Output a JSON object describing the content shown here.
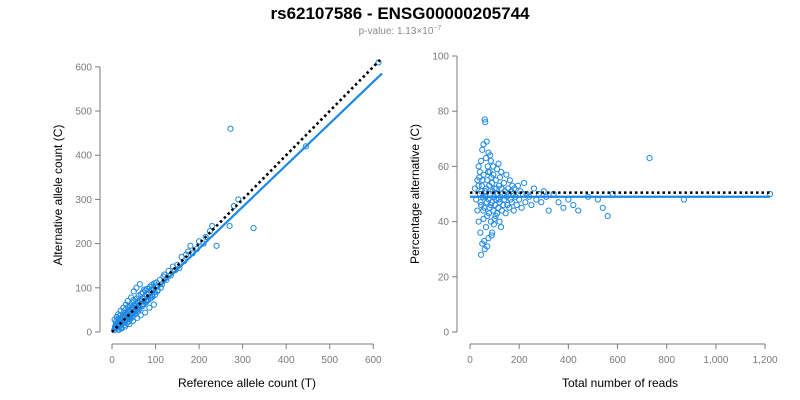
{
  "title": "rs62107586 - ENSG00000205744",
  "subtitle": {
    "prefix": "p-value: 1.13×10",
    "exponent": "−7"
  },
  "colors": {
    "series": "#1e88e5",
    "reference_line": "#000000",
    "axis": "#7a7a7a",
    "subtitle": "#8a8a8a"
  },
  "chart_data": [
    {
      "type": "scatter",
      "title": "",
      "xlabel": "Reference allele count (T)",
      "ylabel": "Alternative allele count (C)",
      "xlim": [
        0,
        620
      ],
      "ylim": [
        0,
        620
      ],
      "xticks": [
        0,
        100,
        200,
        300,
        400,
        500,
        600
      ],
      "yticks": [
        0,
        100,
        200,
        300,
        400,
        500,
        600
      ],
      "xtick_labels": [
        "0",
        "100",
        "200",
        "300",
        "400",
        "500",
        "600"
      ],
      "ytick_labels": [
        "0",
        "100",
        "200",
        "300",
        "400",
        "500",
        "600"
      ],
      "grid": false,
      "points": [
        [
          8,
          10
        ],
        [
          12,
          15
        ],
        [
          15,
          12
        ],
        [
          18,
          22
        ],
        [
          10,
          25
        ],
        [
          22,
          18
        ],
        [
          25,
          30
        ],
        [
          28,
          24
        ],
        [
          30,
          35
        ],
        [
          33,
          28
        ],
        [
          35,
          40
        ],
        [
          38,
          33
        ],
        [
          40,
          45
        ],
        [
          42,
          36
        ],
        [
          45,
          50
        ],
        [
          48,
          42
        ],
        [
          50,
          55
        ],
        [
          52,
          46
        ],
        [
          55,
          60
        ],
        [
          58,
          50
        ],
        [
          60,
          65
        ],
        [
          62,
          55
        ],
        [
          65,
          70
        ],
        [
          68,
          60
        ],
        [
          70,
          75
        ],
        [
          72,
          64
        ],
        [
          75,
          80
        ],
        [
          78,
          70
        ],
        [
          80,
          85
        ],
        [
          82,
          74
        ],
        [
          85,
          88
        ],
        [
          88,
          80
        ],
        [
          90,
          95
        ],
        [
          92,
          84
        ],
        [
          95,
          100
        ],
        [
          98,
          90
        ],
        [
          100,
          105
        ],
        [
          105,
          95
        ],
        [
          110,
          118
        ],
        [
          115,
          108
        ],
        [
          120,
          130
        ],
        [
          125,
          118
        ],
        [
          130,
          138
        ],
        [
          135,
          128
        ],
        [
          140,
          148
        ],
        [
          150,
          152
        ],
        [
          155,
          145
        ],
        [
          160,
          170
        ],
        [
          165,
          160
        ],
        [
          170,
          175
        ],
        [
          14,
          40
        ],
        [
          20,
          48
        ],
        [
          26,
          55
        ],
        [
          32,
          62
        ],
        [
          36,
          70
        ],
        [
          44,
          78
        ],
        [
          50,
          92
        ],
        [
          56,
          100
        ],
        [
          64,
          108
        ],
        [
          74,
          96
        ],
        [
          16,
          5
        ],
        [
          22,
          8
        ],
        [
          30,
          12
        ],
        [
          40,
          18
        ],
        [
          48,
          25
        ],
        [
          58,
          32
        ],
        [
          66,
          38
        ],
        [
          76,
          44
        ],
        [
          86,
          55
        ],
        [
          96,
          62
        ],
        [
          6,
          28
        ],
        [
          9,
          18
        ],
        [
          11,
          34
        ],
        [
          13,
          6
        ],
        [
          17,
          30
        ],
        [
          19,
          38
        ],
        [
          21,
          10
        ],
        [
          23,
          26
        ],
        [
          27,
          44
        ],
        [
          29,
          16
        ],
        [
          31,
          50
        ],
        [
          34,
          20
        ],
        [
          37,
          56
        ],
        [
          39,
          24
        ],
        [
          41,
          60
        ],
        [
          43,
          30
        ],
        [
          46,
          66
        ],
        [
          47,
          34
        ],
        [
          49,
          72
        ],
        [
          53,
          40
        ],
        [
          57,
          76
        ],
        [
          59,
          46
        ],
        [
          61,
          82
        ],
        [
          63,
          52
        ],
        [
          67,
          86
        ],
        [
          69,
          58
        ],
        [
          71,
          90
        ],
        [
          73,
          62
        ],
        [
          77,
          94
        ],
        [
          79,
          68
        ],
        [
          81,
          98
        ],
        [
          83,
          72
        ],
        [
          87,
          102
        ],
        [
          89,
          76
        ],
        [
          91,
          106
        ],
        [
          93,
          80
        ],
        [
          97,
          110
        ],
        [
          99,
          84
        ],
        [
          102,
          112
        ],
        [
          104,
          92
        ],
        [
          5,
          4
        ],
        [
          7,
          12
        ],
        [
          9,
          8
        ],
        [
          11,
          20
        ],
        [
          13,
          16
        ],
        [
          15,
          24
        ],
        [
          17,
          14
        ],
        [
          19,
          28
        ],
        [
          21,
          22
        ],
        [
          23,
          32
        ],
        [
          25,
          20
        ],
        [
          27,
          36
        ],
        [
          29,
          26
        ],
        [
          31,
          40
        ],
        [
          33,
          30
        ],
        [
          35,
          44
        ],
        [
          37,
          34
        ],
        [
          39,
          48
        ],
        [
          41,
          38
        ],
        [
          43,
          52
        ],
        [
          45,
          42
        ],
        [
          47,
          56
        ],
        [
          49,
          46
        ],
        [
          51,
          60
        ],
        [
          53,
          50
        ],
        [
          55,
          64
        ],
        [
          57,
          54
        ],
        [
          59,
          68
        ],
        [
          61,
          58
        ],
        [
          63,
          72
        ],
        [
          180,
          195
        ],
        [
          185,
          178
        ],
        [
          200,
          205
        ],
        [
          215,
          215
        ],
        [
          230,
          240
        ],
        [
          240,
          195
        ],
        [
          270,
          240
        ],
        [
          280,
          285
        ],
        [
          290,
          300
        ],
        [
          325,
          235
        ],
        [
          272,
          460
        ],
        [
          445,
          420
        ],
        [
          612,
          610
        ],
        [
          175,
          182
        ],
        [
          195,
          188
        ],
        [
          210,
          200
        ],
        [
          225,
          228
        ],
        [
          145,
          140
        ],
        [
          112,
          100
        ],
        [
          118,
          125
        ]
      ],
      "fit_line": {
        "from": [
          0,
          0
        ],
        "to": [
          620,
          585
        ]
      },
      "reference_line": {
        "from": [
          0,
          0
        ],
        "to": [
          620,
          620
        ]
      }
    },
    {
      "type": "scatter",
      "title": "",
      "xlabel": "Total number of reads",
      "ylabel": "Percentage alternative (C)",
      "xlim": [
        0,
        1220
      ],
      "ylim": [
        0,
        100
      ],
      "xticks": [
        0,
        200,
        400,
        600,
        800,
        1000,
        1200
      ],
      "yticks": [
        0,
        20,
        40,
        60,
        80,
        100
      ],
      "xtick_labels": [
        "0",
        "200",
        "400",
        "600",
        "800",
        "1,000",
        "1,200"
      ],
      "ytick_labels": [
        "0",
        "20",
        "40",
        "60",
        "80",
        "100"
      ],
      "grid": false,
      "points": [
        [
          20,
          52
        ],
        [
          25,
          48
        ],
        [
          30,
          55
        ],
        [
          30,
          44
        ],
        [
          35,
          60
        ],
        [
          35,
          40
        ],
        [
          40,
          50
        ],
        [
          40,
          58
        ],
        [
          42,
          36
        ],
        [
          45,
          62
        ],
        [
          45,
          46
        ],
        [
          48,
          53
        ],
        [
          50,
          32
        ],
        [
          50,
          66
        ],
        [
          52,
          49
        ],
        [
          55,
          41
        ],
        [
          55,
          57
        ],
        [
          58,
          45
        ],
        [
          60,
          77
        ],
        [
          60,
          30
        ],
        [
          62,
          51
        ],
        [
          65,
          63
        ],
        [
          65,
          38
        ],
        [
          68,
          47
        ],
        [
          70,
          55
        ],
        [
          70,
          42
        ],
        [
          72,
          60
        ],
        [
          75,
          48
        ],
        [
          75,
          34
        ],
        [
          78,
          53
        ],
        [
          80,
          45
        ],
        [
          80,
          58
        ],
        [
          82,
          50
        ],
        [
          85,
          40
        ],
        [
          85,
          62
        ],
        [
          88,
          47
        ],
        [
          90,
          54
        ],
        [
          90,
          36
        ],
        [
          92,
          51
        ],
        [
          95,
          44
        ],
        [
          95,
          57
        ],
        [
          98,
          49
        ],
        [
          100,
          52
        ],
        [
          100,
          41
        ],
        [
          102,
          46
        ],
        [
          105,
          55
        ],
        [
          108,
          48
        ],
        [
          110,
          43
        ],
        [
          110,
          59
        ],
        [
          112,
          50
        ],
        [
          115,
          45
        ],
        [
          118,
          53
        ],
        [
          120,
          47
        ],
        [
          120,
          40
        ],
        [
          122,
          56
        ],
        [
          125,
          49
        ],
        [
          128,
          52
        ],
        [
          130,
          44
        ],
        [
          132,
          50
        ],
        [
          135,
          46
        ],
        [
          138,
          54
        ],
        [
          140,
          48
        ],
        [
          142,
          51
        ],
        [
          145,
          43
        ],
        [
          148,
          57
        ],
        [
          150,
          49
        ],
        [
          152,
          46
        ],
        [
          155,
          52
        ],
        [
          158,
          50
        ],
        [
          160,
          45
        ],
        [
          162,
          55
        ],
        [
          165,
          48
        ],
        [
          168,
          51
        ],
        [
          170,
          47
        ],
        [
          172,
          53
        ],
        [
          175,
          50
        ],
        [
          178,
          44
        ],
        [
          180,
          52
        ],
        [
          185,
          49
        ],
        [
          190,
          46
        ],
        [
          195,
          53
        ],
        [
          200,
          48
        ],
        [
          205,
          51
        ],
        [
          210,
          45
        ],
        [
          215,
          50
        ],
        [
          220,
          54
        ],
        [
          225,
          47
        ],
        [
          230,
          50
        ],
        [
          240,
          49
        ],
        [
          250,
          46
        ],
        [
          260,
          52
        ],
        [
          270,
          48
        ],
        [
          280,
          50
        ],
        [
          290,
          47
        ],
        [
          300,
          51
        ],
        [
          310,
          49
        ],
        [
          320,
          44
        ],
        [
          340,
          50
        ],
        [
          360,
          47
        ],
        [
          380,
          45
        ],
        [
          400,
          48
        ],
        [
          420,
          46
        ],
        [
          440,
          44
        ],
        [
          480,
          49
        ],
        [
          520,
          48
        ],
        [
          540,
          45
        ],
        [
          560,
          42
        ],
        [
          580,
          50
        ],
        [
          730,
          63
        ],
        [
          870,
          48
        ],
        [
          1220,
          50
        ],
        [
          55,
          68
        ],
        [
          62,
          76
        ],
        [
          68,
          69
        ],
        [
          75,
          65
        ],
        [
          82,
          64
        ],
        [
          45,
          28
        ],
        [
          58,
          33
        ],
        [
          70,
          31
        ],
        [
          88,
          35
        ],
        [
          38,
          56
        ],
        [
          46,
          51
        ],
        [
          54,
          44
        ],
        [
          66,
          52
        ],
        [
          74,
          58
        ],
        [
          84,
          46
        ],
        [
          94,
          60
        ],
        [
          104,
          42
        ],
        [
          116,
          61
        ],
        [
          126,
          38
        ],
        [
          35,
          53
        ],
        [
          43,
          47
        ],
        [
          51,
          55
        ],
        [
          63,
          49
        ],
        [
          77,
          43
        ],
        [
          87,
          56
        ],
        [
          97,
          39
        ],
        [
          107,
          52
        ],
        [
          117,
          48
        ],
        [
          127,
          58
        ]
      ],
      "fit_line": {
        "from": [
          0,
          49
        ],
        "to": [
          1220,
          49
        ]
      },
      "reference_line": {
        "from": [
          0,
          50.5
        ],
        "to": [
          1220,
          50.5
        ]
      }
    }
  ]
}
